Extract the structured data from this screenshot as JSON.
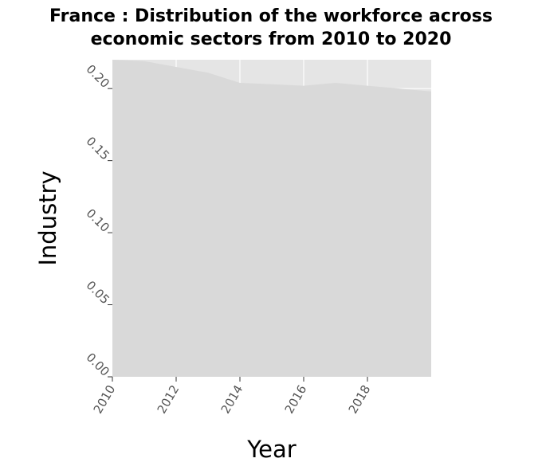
{
  "title_line1": "France : Distribution of the workforce across",
  "title_line2": "economic sectors from 2010 to 2020",
  "chart_data": {
    "type": "area",
    "title": "France : Distribution of the workforce across economic sectors from 2010 to 2020",
    "xlabel": "Year",
    "ylabel": "Industry",
    "xlim": [
      2010,
      2020
    ],
    "ylim": [
      0,
      0.22
    ],
    "x_ticks": [
      "2010",
      "2012",
      "2014",
      "2016",
      "2018"
    ],
    "y_ticks": [
      "0.00",
      "0.05",
      "0.10",
      "0.15",
      "0.20"
    ],
    "grid": true,
    "legend": "none",
    "series": [
      {
        "x": [
          2010,
          2011,
          2012,
          2013,
          2014,
          2015,
          2016,
          2017,
          2018,
          2019,
          2020
        ],
        "values": [
          0.22,
          0.219,
          0.215,
          0.211,
          0.204,
          0.203,
          0.202,
          0.204,
          0.202,
          0.2,
          0.198
        ]
      }
    ],
    "colors": {
      "background": "#e5e5e5",
      "area": "#d9d9d9",
      "grid": "#ffffff"
    }
  }
}
